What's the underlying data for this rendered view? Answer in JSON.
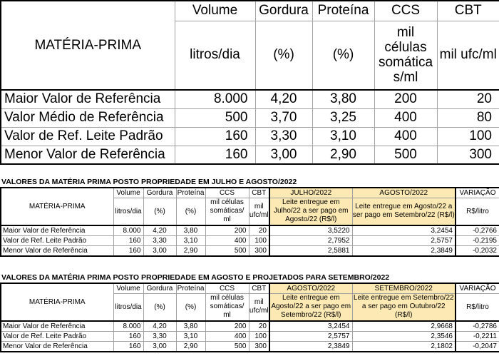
{
  "main_table": {
    "title": "MATÉRIA-PRIMA",
    "columns": [
      {
        "name": "Volume",
        "unit": "litros/dia"
      },
      {
        "name": "Gordura",
        "unit": "(%)"
      },
      {
        "name": "Proteína",
        "unit": "(%)"
      },
      {
        "name": "CCS",
        "unit": "mil células somática s/ml"
      },
      {
        "name": "CBT",
        "unit": "mil ufc/ml"
      }
    ],
    "rows": [
      {
        "label": "Maior Valor de Referência",
        "values": [
          "8.000",
          "4,20",
          "3,80",
          "200",
          "20"
        ]
      },
      {
        "label": "Valor Médio de Referência",
        "values": [
          "500",
          "3,70",
          "3,25",
          "400",
          "80"
        ]
      },
      {
        "label": "Valor de Ref. Leite Padrão",
        "values": [
          "160",
          "3,30",
          "3,10",
          "400",
          "100"
        ]
      },
      {
        "label": "Menor Valor de Referência",
        "values": [
          "160",
          "3,00",
          "2,90",
          "500",
          "300"
        ]
      }
    ]
  },
  "table2": {
    "title": "VALORES DA MATÉRIA PRIMA POSTO PROPRIEDADE EM JULHO E AGOSTO/2022",
    "mp_label": "MATÉRIA-PRIMA",
    "columns": [
      {
        "name": "Volume",
        "unit": "litros/dia"
      },
      {
        "name": "Gordura",
        "unit": "(%)"
      },
      {
        "name": "Proteína",
        "unit": "(%)"
      },
      {
        "name": "CCS",
        "unit": "mil células somáticas/ ml"
      },
      {
        "name": "CBT",
        "unit": "mil ufc/ml"
      }
    ],
    "month1": {
      "name": "JULHO/2022",
      "desc": "Leite entregue em Julho/22 a ser pago em Agosto/22 (R$/l)"
    },
    "month2": {
      "name": "AGOSTO/2022",
      "desc": "Leite entregue em Agosto/22 a ser pago em Setembro/22 (R$/l)"
    },
    "variation": {
      "name": "VARIAÇÃO",
      "unit": "R$/litro"
    },
    "rows": [
      {
        "label": "Maior Valor de Referência",
        "values": [
          "8.000",
          "4,20",
          "3,80",
          "200",
          "20",
          "3,5220",
          "3,2454",
          "-0,2766"
        ]
      },
      {
        "label": "Valor de Ref. Leite Padrão",
        "values": [
          "160",
          "3,30",
          "3,10",
          "400",
          "100",
          "2,7952",
          "2,5757",
          "-0,2195"
        ]
      },
      {
        "label": "Menor Valor de Referência",
        "values": [
          "160",
          "3,00",
          "2,90",
          "500",
          "300",
          "2,5881",
          "2,3849",
          "-0,2032"
        ]
      }
    ]
  },
  "table3": {
    "title": "VALORES DA MATÉRIA PRIMA POSTO PROPRIEDADE EM AGOSTO E PROJETADOS PARA SETEMBRO/2022",
    "mp_label": "MATÉRIA-PRIMA",
    "columns": [
      {
        "name": "Volume",
        "unit": "litros/dia"
      },
      {
        "name": "Gordura",
        "unit": "(%)"
      },
      {
        "name": "Proteína",
        "unit": "(%)"
      },
      {
        "name": "CCS",
        "unit": "mil células somáticas/ ml"
      },
      {
        "name": "CBT",
        "unit": "mil ufc/ml"
      }
    ],
    "month1": {
      "name": "AGOSTO/2022",
      "desc": "Leite entregue em Agosto/22 a ser pago em Setembro/22 (R$/l)"
    },
    "month2": {
      "name": "SETEMBRO/2022",
      "desc": "Leite entregue em Setembro/22 a ser pago em Outubro/22 (R$/l)"
    },
    "variation": {
      "name": "VARIAÇÃO",
      "unit": "R$/litro"
    },
    "rows": [
      {
        "label": "Maior Valor de Referência",
        "values": [
          "8.000",
          "4,20",
          "3,80",
          "200",
          "20",
          "3,2454",
          "2,9668",
          "-0,2786"
        ]
      },
      {
        "label": "Valor de Ref. Leite Padrão",
        "values": [
          "160",
          "3,30",
          "3,10",
          "400",
          "100",
          "2,5757",
          "2,3546",
          "-0,2211"
        ]
      },
      {
        "label": "Menor Valor de Referência",
        "values": [
          "160",
          "3,00",
          "2,90",
          "500",
          "300",
          "2,3849",
          "2,1802",
          "-0,2047"
        ]
      }
    ]
  }
}
